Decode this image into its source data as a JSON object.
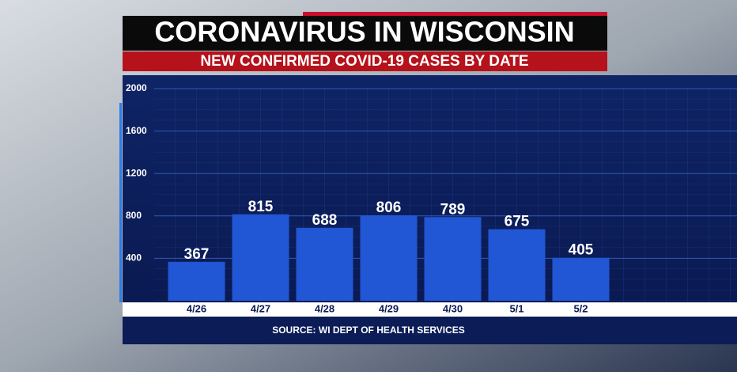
{
  "chart_data": {
    "type": "bar",
    "title": "CORONAVIRUS IN WISCONSIN",
    "subtitle": "NEW CONFIRMED COVID-19 CASES BY DATE",
    "source": "SOURCE: WI DEPT OF HEALTH SERVICES",
    "categories": [
      "4/26",
      "4/27",
      "4/28",
      "4/29",
      "4/30",
      "5/1",
      "5/2"
    ],
    "values": [
      367,
      815,
      688,
      806,
      789,
      675,
      405
    ],
    "color": "#2156d4",
    "ylim": [
      0,
      2000
    ],
    "yticks": [
      400,
      800,
      1200,
      1600,
      2000
    ],
    "grid": true
  }
}
